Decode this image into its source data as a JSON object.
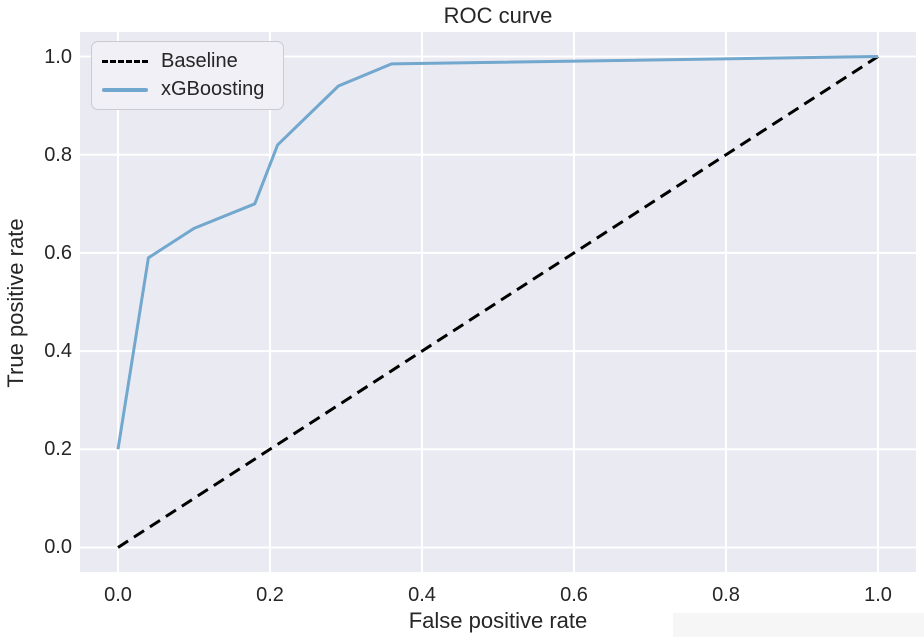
{
  "figure": {
    "title": "ROC curve",
    "xlabel": "False positive rate",
    "ylabel": "True positive rate"
  },
  "chart_data": {
    "type": "line",
    "title": "ROC curve",
    "xlabel": "False positive rate",
    "ylabel": "True positive rate",
    "xlim": [
      -0.05,
      1.05
    ],
    "ylim": [
      -0.05,
      1.05
    ],
    "grid": true,
    "legend_position": "upper left",
    "x_ticks": [
      {
        "v": 0.0,
        "label": "0.0"
      },
      {
        "v": 0.2,
        "label": "0.2"
      },
      {
        "v": 0.4,
        "label": "0.4"
      },
      {
        "v": 0.6,
        "label": "0.6"
      },
      {
        "v": 0.8,
        "label": "0.8"
      },
      {
        "v": 1.0,
        "label": "1.0"
      }
    ],
    "y_ticks": [
      {
        "v": 0.0,
        "label": "0.0"
      },
      {
        "v": 0.2,
        "label": "0.2"
      },
      {
        "v": 0.4,
        "label": "0.4"
      },
      {
        "v": 0.6,
        "label": "0.6"
      },
      {
        "v": 0.8,
        "label": "0.8"
      },
      {
        "v": 1.0,
        "label": "1.0"
      }
    ],
    "series": [
      {
        "name": "Baseline",
        "style": "dashed",
        "color": "#000000",
        "x": [
          0.0,
          1.0
        ],
        "y": [
          0.0,
          1.0
        ]
      },
      {
        "name": "xGBoosting",
        "style": "solid",
        "color": "#72a7ce",
        "x": [
          0.0,
          0.04,
          0.1,
          0.18,
          0.21,
          0.29,
          0.36,
          1.0
        ],
        "y": [
          0.2,
          0.59,
          0.65,
          0.7,
          0.82,
          0.94,
          0.985,
          1.0
        ]
      }
    ]
  },
  "colors": {
    "background": "#ffffff",
    "plot_background": "#eaeaf2",
    "gridline": "#ffffff",
    "text": "#262626",
    "baseline_line": "#000000",
    "xgboosting_line": "#72a7ce",
    "legend_background": "#f0f0f6",
    "legend_border": "#cacad3",
    "watermark_background": "#f6f6f6"
  }
}
